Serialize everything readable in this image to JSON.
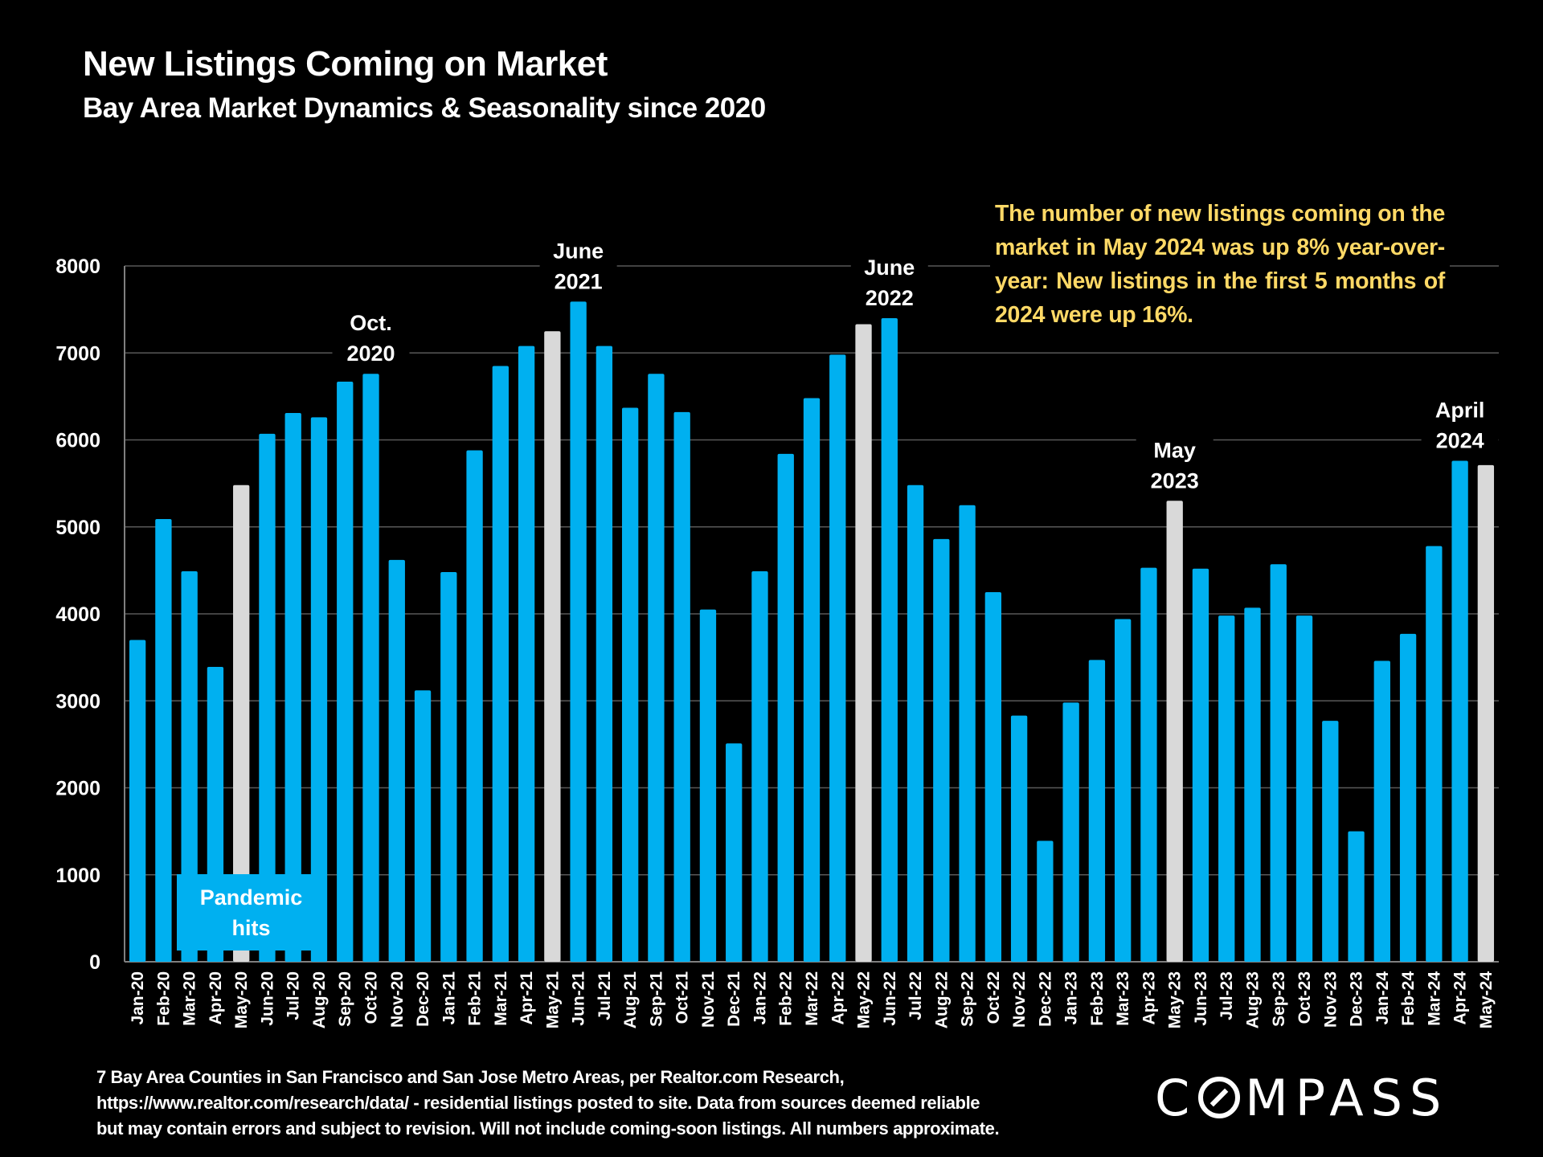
{
  "header": {
    "title": "New Listings Coming on Market",
    "subtitle": "Bay Area Market Dynamics & Seasonality since 2020"
  },
  "colors": {
    "background": "#000000",
    "bar": "#00b0f0",
    "highlight_bar": "#d9d9d9",
    "gridline": "#595959",
    "callout_text": "#ffd966",
    "text": "#ffffff"
  },
  "callout": "The number of new listings coming on the market in May 2024 was up 8% year-over-year: New listings in the first 5 months of 2024 were up 16%.",
  "pandemic_label": {
    "line1": "Pandemic",
    "line2": "hits"
  },
  "footer": {
    "line1": "7 Bay Area Counties in San Francisco and San Jose Metro Areas, per Realtor.com Research,",
    "line2": "https://www.realtor.com/research/data/ - residential listings posted to site. Data from sources deemed reliable",
    "line3": "but may contain errors and subject to revision. Will not include coming-soon listings. All numbers approximate."
  },
  "logo": {
    "before": "C",
    "after": "MPASS",
    "icon": "compass-o-slash-icon"
  },
  "chart_data": {
    "type": "bar",
    "title": "New Listings Coming on Market",
    "subtitle": "Bay Area Market Dynamics & Seasonality since 2020",
    "xlabel": "",
    "ylabel": "",
    "ylim": [
      0,
      8000
    ],
    "yticks": [
      0,
      1000,
      2000,
      3000,
      4000,
      5000,
      6000,
      7000,
      8000
    ],
    "grid": true,
    "legend": "none",
    "categories": [
      "Jan-20",
      "Feb-20",
      "Mar-20",
      "Apr-20",
      "May-20",
      "Jun-20",
      "Jul-20",
      "Aug-20",
      "Sep-20",
      "Oct-20",
      "Nov-20",
      "Dec-20",
      "Jan-21",
      "Feb-21",
      "Mar-21",
      "Apr-21",
      "May-21",
      "Jun-21",
      "Jul-21",
      "Aug-21",
      "Sep-21",
      "Oct-21",
      "Nov-21",
      "Dec-21",
      "Jan-22",
      "Feb-22",
      "Mar-22",
      "Apr-22",
      "May-22",
      "Jun-22",
      "Jul-22",
      "Aug-22",
      "Sep-22",
      "Oct-22",
      "Nov-22",
      "Dec-22",
      "Jan-23",
      "Feb-23",
      "Mar-23",
      "Apr-23",
      "May-23",
      "Jun-23",
      "Jul-23",
      "Aug-23",
      "Sep-23",
      "Oct-23",
      "Nov-23",
      "Dec-23",
      "Jan-24",
      "Feb-24",
      "Mar-24",
      "Apr-24",
      "May-24"
    ],
    "values": [
      3700,
      5090,
      4490,
      3390,
      5480,
      6070,
      6310,
      6260,
      6670,
      6760,
      4620,
      3120,
      4480,
      5880,
      6850,
      7080,
      7250,
      7590,
      7080,
      6370,
      6760,
      6320,
      4050,
      2510,
      4490,
      5840,
      6480,
      6980,
      7330,
      7400,
      5480,
      4860,
      5250,
      4250,
      2830,
      1390,
      2980,
      3470,
      3940,
      4530,
      5300,
      4520,
      3980,
      4070,
      4570,
      3980,
      2770,
      1500,
      3460,
      3770,
      4780,
      5760,
      5710
    ],
    "highlighted": [
      "May-20",
      "May-21",
      "May-22",
      "May-23",
      "May-24"
    ],
    "annotations": [
      {
        "target": "Oct-20",
        "line1": "Oct.",
        "line2": "2020"
      },
      {
        "target": "Jun-21",
        "line1": "June",
        "line2": "2021"
      },
      {
        "target": "Jun-22",
        "line1": "June",
        "line2": "2022"
      },
      {
        "target": "May-23",
        "line1": "May",
        "line2": "2023"
      },
      {
        "target": "Apr-24",
        "line1": "April",
        "line2": "2024"
      }
    ]
  }
}
